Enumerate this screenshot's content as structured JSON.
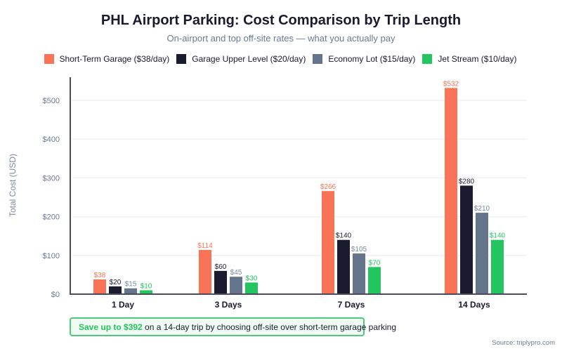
{
  "chart_data": {
    "type": "bar",
    "title": "PHL Airport Parking: Cost Comparison by Trip Length",
    "subtitle": "On-airport and top off-site rates — what you actually pay",
    "xlabel": "",
    "ylabel": "Total Cost (USD)",
    "ylim": [
      0,
      550
    ],
    "yticks": [
      0,
      100,
      200,
      300,
      400,
      500
    ],
    "ytick_labels": [
      "$0",
      "$100",
      "$200",
      "$300",
      "$400",
      "$500"
    ],
    "grid": true,
    "legend_position": "top",
    "categories": [
      "1 Day",
      "3 Days",
      "7 Days",
      "14 Days"
    ],
    "series": [
      {
        "name": "Short-Term Garage ($38/day)",
        "color": "#f97356",
        "values": [
          38,
          114,
          266,
          532
        ],
        "labels": [
          "$38",
          "$114",
          "$266",
          "$532"
        ]
      },
      {
        "name": "Garage Upper Level ($20/day)",
        "color": "#1b1b2f",
        "values": [
          20,
          60,
          140,
          280
        ],
        "labels": [
          "$20",
          "$60",
          "$140",
          "$280"
        ]
      },
      {
        "name": "Economy Lot ($15/day)",
        "color": "#64748b",
        "values": [
          15,
          45,
          105,
          210
        ],
        "labels": [
          "$15",
          "$45",
          "$105",
          "$210"
        ]
      },
      {
        "name": "Jet Stream ($10/day)",
        "color": "#22c55e",
        "values": [
          10,
          30,
          70,
          140
        ],
        "labels": [
          "$10",
          "$30",
          "$70",
          "$140"
        ]
      }
    ],
    "label_colors": [
      "#f97356",
      "#1b1b2f",
      "#7b8aa0",
      "#22c55e"
    ]
  },
  "callout": {
    "highlight": "Save up to $392",
    "text": " on a 14-day trip by choosing off-site over short-term garage parking"
  },
  "source": "Source: triplypro.com"
}
